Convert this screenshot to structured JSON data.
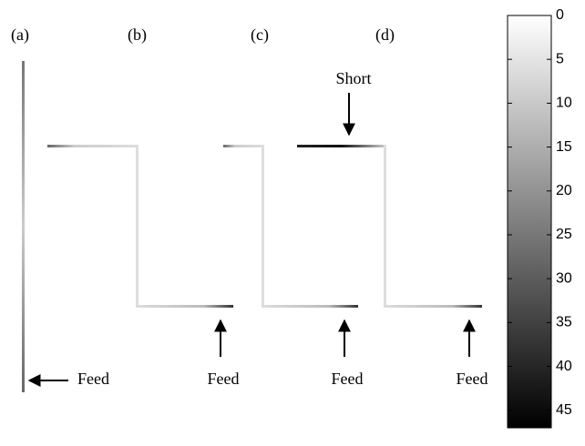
{
  "panel_labels": [
    "(a)",
    "(b)",
    "(c)",
    "(d)"
  ],
  "feed_labels": [
    "Feed",
    "Feed",
    "Feed",
    "Feed"
  ],
  "short_label": "Short",
  "colorbar": {
    "lim": [
      0,
      47
    ],
    "ticks": [
      0,
      5,
      10,
      15,
      20,
      25,
      30,
      35,
      40,
      45
    ]
  }
}
